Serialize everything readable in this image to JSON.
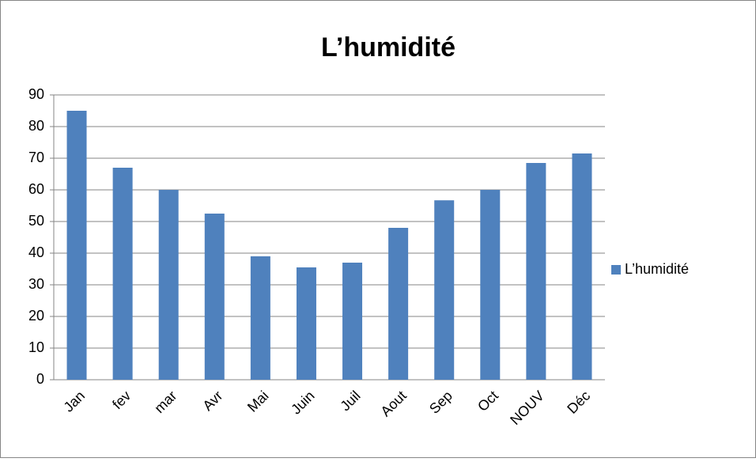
{
  "chart_data": {
    "type": "bar",
    "title": "L’humidité",
    "categories": [
      "Jan",
      "fev",
      "mar",
      "Avr",
      "Mai",
      "Juin",
      "Juil",
      "Aout",
      "Sep",
      "Oct",
      "NOUV",
      "Déc"
    ],
    "series": [
      {
        "name": "L’humidité",
        "color": "#4f81bd",
        "values": [
          85,
          67,
          60,
          52.5,
          39,
          35.5,
          37,
          48,
          56.7,
          60,
          68.5,
          71.5
        ]
      }
    ],
    "ylim": [
      0,
      90
    ],
    "yticks": [
      0,
      10,
      20,
      30,
      40,
      50,
      60,
      70,
      80,
      90
    ],
    "grid": true,
    "legend": "right"
  }
}
